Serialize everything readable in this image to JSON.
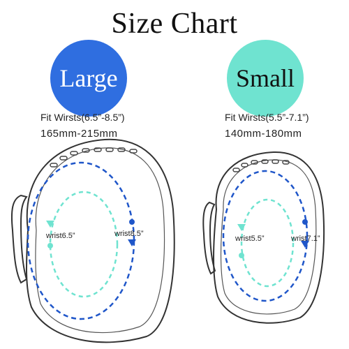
{
  "title": "Size Chart",
  "large": {
    "badge": "Large",
    "fit": "Fit Wirsts(6.5”-8.5”)",
    "range_mm": "165mm-215mm",
    "inner_label": "wrist6.5”",
    "outer_label": "wrist8.5”"
  },
  "small": {
    "badge": "Small",
    "fit": "Fit Wirsts(5.5”-7.1”)",
    "range_mm": "140mm-180mm",
    "inner_label": "wrist5.5”",
    "outer_label": "wrist7.1”"
  },
  "colors": {
    "large_badge": "#2f6ee0",
    "small_badge": "#6fe3d0",
    "outer_path": "#1f56c9",
    "inner_path": "#6fe3d0",
    "band_outline": "#333333"
  }
}
